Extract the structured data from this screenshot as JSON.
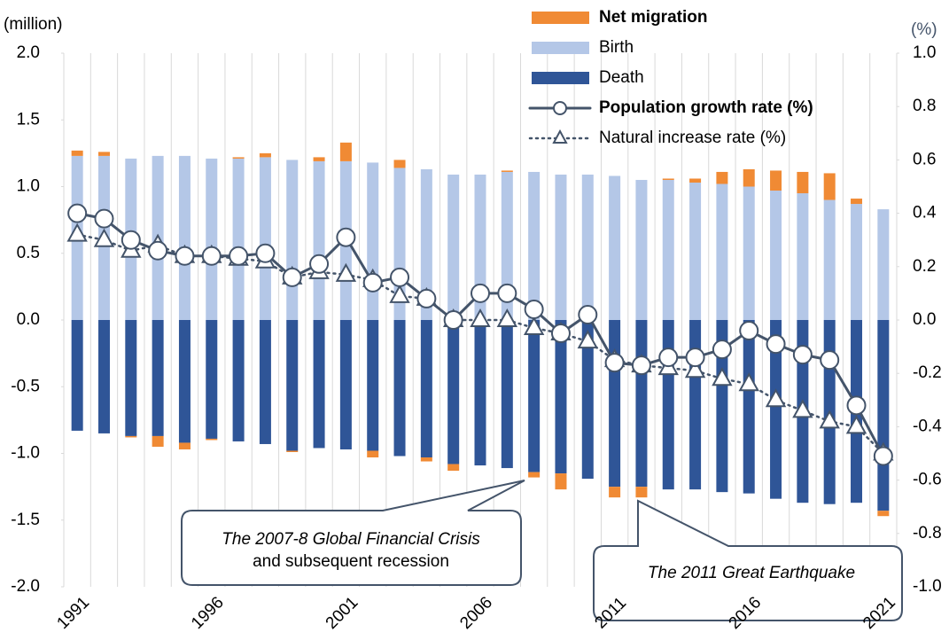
{
  "chart_data": {
    "type": "bar",
    "y_axis_unit": "(million)",
    "y2_axis_unit": "(%)",
    "categories": [
      "1991",
      null,
      null,
      null,
      null,
      "1996",
      null,
      null,
      null,
      null,
      "2001",
      null,
      null,
      null,
      null,
      "2006",
      null,
      null,
      null,
      null,
      "2011",
      null,
      null,
      null,
      null,
      "2016",
      null,
      null,
      null,
      null,
      "2021"
    ],
    "ylim": [
      -2.0,
      2.0
    ],
    "yticks": [
      {
        "value": 2.0,
        "label": "2.0"
      },
      {
        "value": 1.5,
        "label": "1.5"
      },
      {
        "value": 1.0,
        "label": "1.0"
      },
      {
        "value": 0.5,
        "label": "0.5"
      },
      {
        "value": 0.0,
        "label": "0.0"
      },
      {
        "value": -0.5,
        "label": "-0.5"
      },
      {
        "value": -1.0,
        "label": "-1.0"
      },
      {
        "value": -1.5,
        "label": "-1.5"
      },
      {
        "value": -2.0,
        "label": "-2.0"
      }
    ],
    "y2lim": [
      -1.0,
      1.0
    ],
    "y2ticks": [
      {
        "value": 1.0,
        "label": "1.0"
      },
      {
        "value": 0.8,
        "label": "0.8"
      },
      {
        "value": 0.6,
        "label": "0.6"
      },
      {
        "value": 0.4,
        "label": "0.4"
      },
      {
        "value": 0.2,
        "label": "0.2"
      },
      {
        "value": 0.0,
        "label": "0.0"
      },
      {
        "value": -0.2,
        "label": "-0.2"
      },
      {
        "value": -0.4,
        "label": "-0.4"
      },
      {
        "value": -0.6,
        "label": "-0.6"
      },
      {
        "value": -0.8,
        "label": "-0.8"
      },
      {
        "value": -1.0,
        "label": "-1.0"
      }
    ],
    "grid": "x",
    "series": [
      {
        "name": "Net migration",
        "type": "bar",
        "color": "#f08a34",
        "values": [
          0.04,
          0.03,
          -0.01,
          -0.08,
          -0.05,
          -0.01,
          0.01,
          0.03,
          -0.01,
          0.03,
          0.14,
          -0.05,
          0.06,
          -0.03,
          -0.05,
          0,
          0.01,
          -0.04,
          -0.12,
          0,
          -0.08,
          -0.08,
          0.01,
          0.03,
          0.09,
          0.13,
          0.15,
          0.16,
          0.2,
          0.04,
          -0.04
        ]
      },
      {
        "name": "Birth",
        "type": "bar",
        "color": "#b4c7e7",
        "values": [
          1.23,
          1.23,
          1.21,
          1.23,
          1.23,
          1.21,
          1.21,
          1.22,
          1.2,
          1.19,
          1.19,
          1.18,
          1.14,
          1.13,
          1.09,
          1.09,
          1.11,
          1.11,
          1.09,
          1.09,
          1.08,
          1.05,
          1.05,
          1.03,
          1.02,
          1.0,
          0.97,
          0.95,
          0.9,
          0.87,
          0.83
        ]
      },
      {
        "name": "Death",
        "type": "bar",
        "color": "#2f5597",
        "values": [
          -0.83,
          -0.85,
          -0.87,
          -0.87,
          -0.92,
          -0.89,
          -0.91,
          -0.93,
          -0.98,
          -0.96,
          -0.97,
          -0.98,
          -1.02,
          -1.03,
          -1.08,
          -1.09,
          -1.11,
          -1.14,
          -1.15,
          -1.19,
          -1.25,
          -1.25,
          -1.27,
          -1.27,
          -1.29,
          -1.3,
          -1.34,
          -1.37,
          -1.38,
          -1.37,
          -1.43
        ]
      },
      {
        "name": "Population growth rate (%)",
        "type": "line",
        "axis": "y2",
        "color": "#44546a",
        "line_style": "solid",
        "marker": "circle",
        "values": [
          0.4,
          0.38,
          0.3,
          0.26,
          0.24,
          0.24,
          0.24,
          0.25,
          0.16,
          0.21,
          0.31,
          0.14,
          0.16,
          0.08,
          0.0,
          0.1,
          0.1,
          0.04,
          -0.05,
          0.02,
          -0.16,
          -0.17,
          -0.14,
          -0.14,
          -0.11,
          -0.04,
          -0.09,
          -0.13,
          -0.15,
          -0.32,
          -0.51
        ]
      },
      {
        "name": "Natural increase rate (%)",
        "type": "line",
        "axis": "y2",
        "color": "#44546a",
        "line_style": "dotted",
        "marker": "triangle",
        "values": [
          0.32,
          0.3,
          0.26,
          0.28,
          0.24,
          0.24,
          0.23,
          0.22,
          0.16,
          0.18,
          0.17,
          0.15,
          0.09,
          0.08,
          0.0,
          0.0,
          0.0,
          -0.03,
          -0.05,
          -0.08,
          -0.15,
          -0.17,
          -0.18,
          -0.19,
          -0.22,
          -0.24,
          -0.3,
          -0.34,
          -0.38,
          -0.4,
          -0.5
        ]
      }
    ],
    "annotations": [
      {
        "lines": [
          "The 2007-8 Global Financial Crisis",
          "and subsequent recession"
        ]
      },
      {
        "lines": [
          "The 2011 Great Earthquake"
        ]
      }
    ]
  }
}
